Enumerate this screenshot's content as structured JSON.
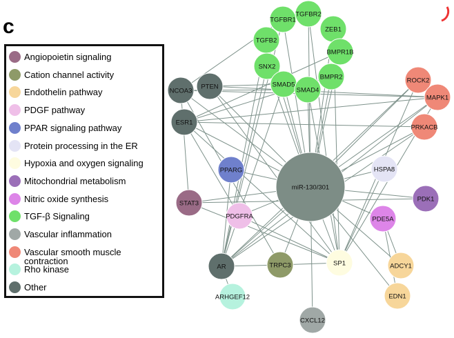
{
  "panel_label": "c",
  "legend": [
    {
      "label": "Angiopoietin signaling",
      "color": "#9a6b86"
    },
    {
      "label": "Cation channel activity",
      "color": "#8e9a68"
    },
    {
      "label": "Endothelin pathway",
      "color": "#f7d69a"
    },
    {
      "label": "PDGF pathway",
      "color": "#efbfe8"
    },
    {
      "label": "PPAR signaling pathway",
      "color": "#6f80cc"
    },
    {
      "label": "Protein processing in the ER",
      "color": "#e4e4f5"
    },
    {
      "label": "Hypoxia and oxygen signaling",
      "color": "#fefce0"
    },
    {
      "label": "Mitochondrial metabolism",
      "color": "#9b6fb8"
    },
    {
      "label": "Nitric oxide synthesis",
      "color": "#dd85e8"
    },
    {
      "label": "TGF-β Signaling",
      "color": "#6fe06a"
    },
    {
      "label": "Vascular inflammation",
      "color": "#a0a8a6"
    },
    {
      "label": "Vascular smooth muscle contraction",
      "color": "#ef8877"
    },
    {
      "label": "Rho kinase",
      "color": "#b6f2de"
    },
    {
      "label": "Other",
      "color": "#5f6f6c"
    }
  ],
  "nodes": [
    {
      "label": "TGFBR1"
    },
    {
      "label": "TGFBR2"
    },
    {
      "label": "ZEB1"
    },
    {
      "label": "TGFB2"
    },
    {
      "label": "BMPR1B"
    },
    {
      "label": "SNX2"
    },
    {
      "label": "BMPR2"
    },
    {
      "label": "SMAD5"
    },
    {
      "label": "SMAD4"
    },
    {
      "label": "NCOA3"
    },
    {
      "label": "PTEN"
    },
    {
      "label": "ESR1"
    },
    {
      "label": "ROCK2"
    },
    {
      "label": "MAPK1"
    },
    {
      "label": "PRKACB"
    },
    {
      "label": "PPARG"
    },
    {
      "label": "miR-130/301"
    },
    {
      "label": "HSPA8"
    },
    {
      "label": "PDK1"
    },
    {
      "label": "STAT3"
    },
    {
      "label": "PDGFRA"
    },
    {
      "label": "PDE5A"
    },
    {
      "label": "AR"
    },
    {
      "label": "TRPC3"
    },
    {
      "label": "SP1"
    },
    {
      "label": "ADCY1"
    },
    {
      "label": "ARHGEF12"
    },
    {
      "label": "EDN1"
    },
    {
      "label": "CXCL12"
    }
  ]
}
